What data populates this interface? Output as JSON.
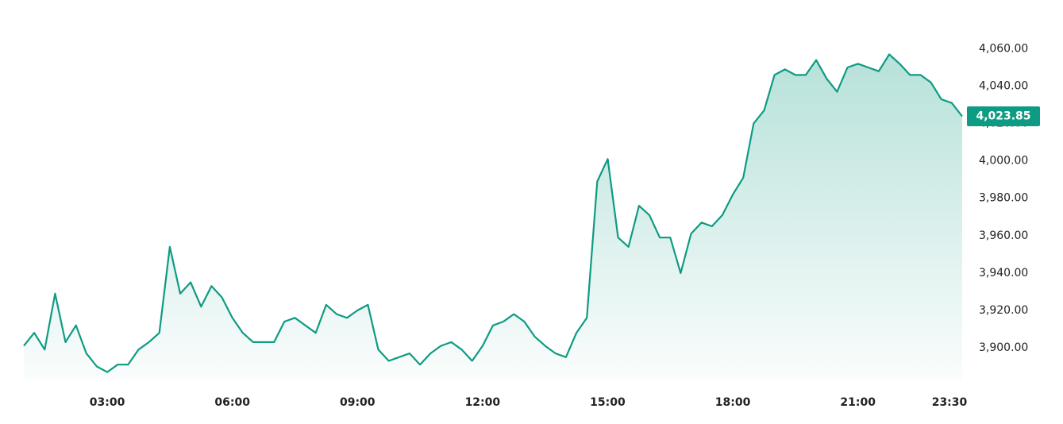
{
  "chart_data": {
    "type": "area",
    "x": [
      1.0,
      1.25,
      1.5,
      1.75,
      2.0,
      2.25,
      2.5,
      2.75,
      3.0,
      3.25,
      3.5,
      3.75,
      4.0,
      4.25,
      4.5,
      4.75,
      5.0,
      5.25,
      5.5,
      5.75,
      6.0,
      6.25,
      6.5,
      6.75,
      7.0,
      7.25,
      7.5,
      7.75,
      8.0,
      8.25,
      8.5,
      8.75,
      9.0,
      9.25,
      9.5,
      9.75,
      10.0,
      10.25,
      10.5,
      10.75,
      11.0,
      11.25,
      11.5,
      11.75,
      12.0,
      12.25,
      12.5,
      12.75,
      13.0,
      13.25,
      13.5,
      13.75,
      14.0,
      14.25,
      14.5,
      14.75,
      15.0,
      15.25,
      15.5,
      15.75,
      16.0,
      16.25,
      16.5,
      16.75,
      17.0,
      17.25,
      17.5,
      17.75,
      18.0,
      18.25,
      18.5,
      18.75,
      19.0,
      19.25,
      19.5,
      19.75,
      20.0,
      20.25,
      20.5,
      20.75,
      21.0,
      21.25,
      21.5,
      21.75,
      22.0,
      22.25,
      22.5,
      22.75,
      23.0,
      23.25,
      23.5
    ],
    "values": [
      3901,
      3908,
      3899,
      3929,
      3903,
      3912,
      3897,
      3890,
      3887,
      3891,
      3891,
      3899,
      3903,
      3908,
      3954,
      3929,
      3935,
      3922,
      3933,
      3927,
      3916,
      3908,
      3903,
      3903,
      3903,
      3914,
      3916,
      3912,
      3908,
      3923,
      3918,
      3916,
      3920,
      3923,
      3899,
      3893,
      3895,
      3897,
      3891,
      3897,
      3901,
      3903,
      3899,
      3893,
      3901,
      3912,
      3914,
      3918,
      3914,
      3906,
      3901,
      3897,
      3895,
      3908,
      3916,
      3989,
      4001,
      3959,
      3954,
      3976,
      3971,
      3959,
      3959,
      3940,
      3961,
      3967,
      3965,
      3971,
      3982,
      3991,
      4020,
      4027,
      4046,
      4049,
      4046,
      4046,
      4054,
      4044,
      4037,
      4050,
      4052,
      4050,
      4048,
      4057,
      4052,
      4046,
      4046,
      4042,
      4033,
      4031,
      4023.85
    ],
    "last_label": "4,023.85",
    "color": "#0e9b83",
    "xlim": [
      1.0,
      23.5
    ],
    "ylim": [
      3883,
      4067
    ],
    "xticks": [
      {
        "value": 3,
        "label": "03:00"
      },
      {
        "value": 6,
        "label": "06:00"
      },
      {
        "value": 9,
        "label": "09:00"
      },
      {
        "value": 12,
        "label": "12:00"
      },
      {
        "value": 15,
        "label": "15:00"
      },
      {
        "value": 18,
        "label": "18:00"
      },
      {
        "value": 21,
        "label": "21:00"
      },
      {
        "value": 23.5,
        "label": "23:30"
      }
    ],
    "yticks": [
      {
        "value": 3900,
        "label": "3,900.00"
      },
      {
        "value": 3920,
        "label": "3,920.00"
      },
      {
        "value": 3940,
        "label": "3,940.00"
      },
      {
        "value": 3960,
        "label": "3,960.00"
      },
      {
        "value": 3980,
        "label": "3,980.00"
      },
      {
        "value": 4000,
        "label": "4,000.00"
      },
      {
        "value": 4020,
        "label": "4,020.00"
      },
      {
        "value": 4040,
        "label": "4,040.00"
      },
      {
        "value": 4060,
        "label": "4,060.00"
      }
    ]
  }
}
